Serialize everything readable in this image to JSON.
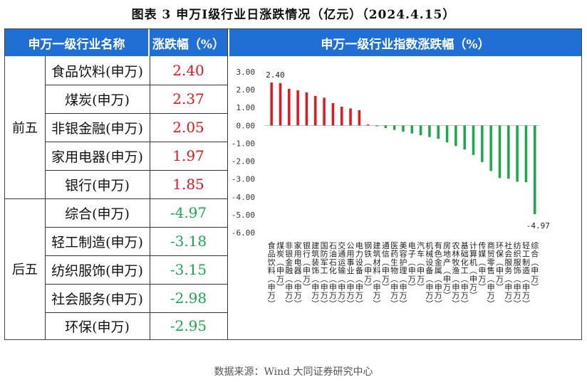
{
  "title": "图表 3  申万Ⅰ级行业日涨跌情况（亿元）（2024.4.15）",
  "table": {
    "col_name": "申万一级行业名称",
    "col_value": "涨跌幅（%）",
    "groups": [
      {
        "label": "前五",
        "rows": [
          {
            "name": "食品饮料(申万)",
            "value": "2.40"
          },
          {
            "name": "煤炭(申万)",
            "value": "2.37"
          },
          {
            "name": "非银金融(申万)",
            "value": "2.05"
          },
          {
            "name": "家用电器(申万)",
            "value": "1.97"
          },
          {
            "name": "银行(申万)",
            "value": "1.85"
          }
        ]
      },
      {
        "label": "后五",
        "rows": [
          {
            "name": "综合(申万)",
            "value": "-4.97"
          },
          {
            "name": "轻工制造(申万)",
            "value": "-3.18"
          },
          {
            "name": "纺织服饰(申万)",
            "value": "-3.15"
          },
          {
            "name": "社会服务(申万)",
            "value": "-2.98"
          },
          {
            "name": "环保(申万)",
            "value": "-2.95"
          }
        ]
      }
    ]
  },
  "chart_title": "申万一级行业指数涨跌幅（%）",
  "source": "数据来源：Wind 大同证券研究中心",
  "colors": {
    "header": "#1f6fd4",
    "positive": "#e8141c",
    "negative": "#18a94a"
  },
  "chart_data": {
    "type": "bar",
    "title": "申万一级行业指数涨跌幅（%）",
    "ylim": [
      -6,
      3
    ],
    "yticks": [
      "3.00",
      "2.00",
      "1.00",
      "0.00",
      "-1.00",
      "-2.00",
      "-3.00",
      "-4.00",
      "-5.00",
      "-6.00"
    ],
    "grid": false,
    "data_labels": [
      {
        "category": "食品饮料(申万)",
        "text": "2.40"
      },
      {
        "category": "综合(申万)",
        "text": "-4.97"
      }
    ],
    "categories": [
      "食品饮料(申万)",
      "煤炭(申万)",
      "非银金融(申万)",
      "家用电器(申万)",
      "银行(申万)",
      "建筑装饰(申万)",
      "国防军工(申万)",
      "石油石化(申万)",
      "交通运输(申万)",
      "公用事业(申万)",
      "电力设备(申万)",
      "钢铁(申万)",
      "建筑材料(申万)",
      "通信(申万)",
      "医药生物(申万)",
      "美容护理(申万)",
      "电子(申万)",
      "汽车(申万)",
      "机械设备(申万)",
      "有色金属(申万)",
      "房地产(申万)",
      "农林牧渔(申万)",
      "基础化工(申万)",
      "计算机(申万)",
      "传媒(申万)",
      "商贸零售(申万)",
      "环保(申万)",
      "社会服务(申万)",
      "纺织服饰(申万)",
      "轻工制造(申万)",
      "综合(申万)"
    ],
    "values": [
      2.4,
      2.37,
      2.05,
      1.97,
      1.85,
      1.65,
      1.55,
      1.25,
      1.05,
      0.95,
      0.85,
      0.05,
      -0.05,
      -0.15,
      -0.25,
      -0.35,
      -0.45,
      -0.55,
      -0.65,
      -0.75,
      -0.95,
      -1.15,
      -1.35,
      -1.65,
      -2.05,
      -2.55,
      -2.95,
      -2.98,
      -3.15,
      -3.18,
      -4.97
    ]
  }
}
